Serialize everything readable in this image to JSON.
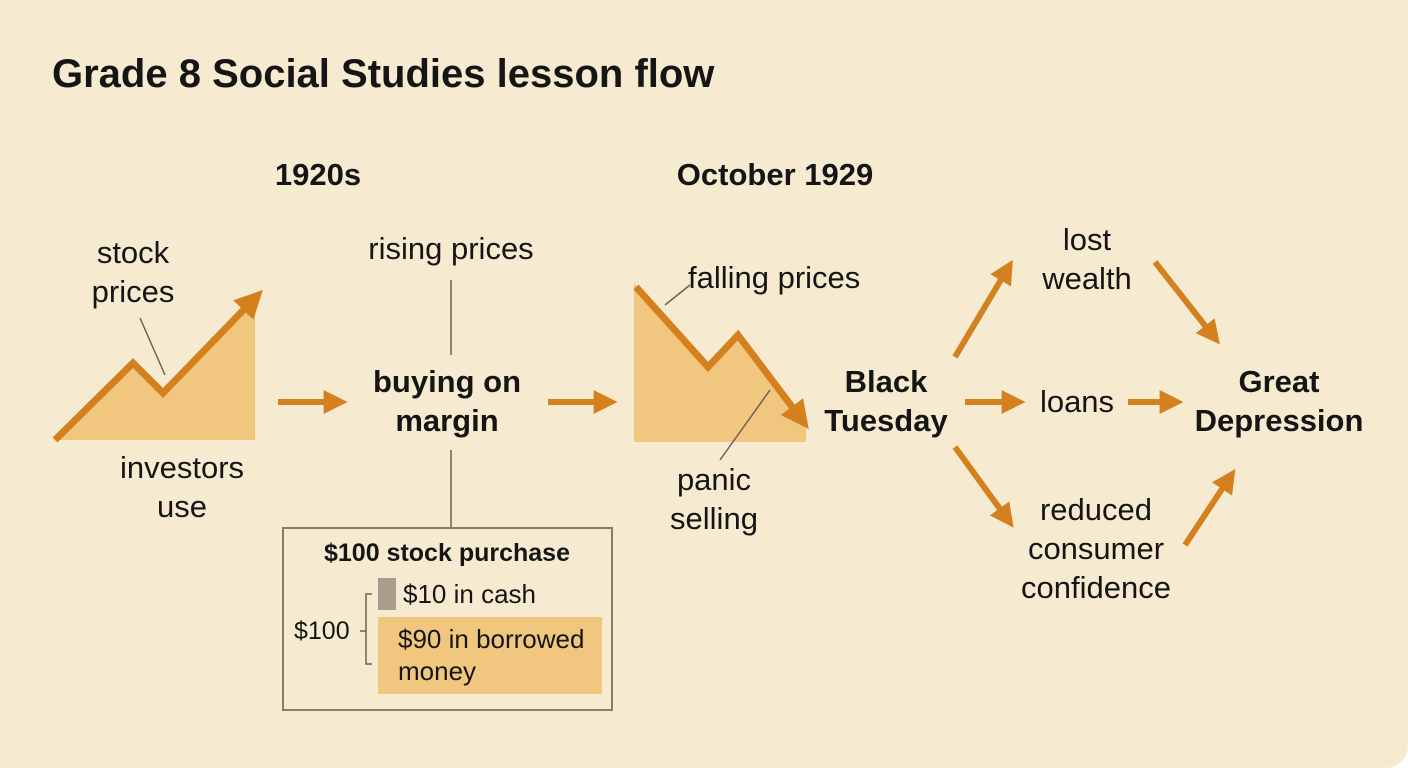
{
  "header": {
    "title": "Grade 8 Social Studies lesson flow"
  },
  "periods": [
    "1920s",
    "October 1929"
  ],
  "annotations": {
    "stock_prices": "stock prices",
    "investors_use": "investors use",
    "rising_prices": "rising prices",
    "falling_prices": "falling prices",
    "panic_selling": "panic selling"
  },
  "nodes": {
    "buying_on_margin": "buying on margin",
    "black_tuesday": "Black Tuesday",
    "great_depression": "Great Depression"
  },
  "effects": [
    "lost wealth",
    "loans",
    "reduced consumer confidence"
  ],
  "example": {
    "title": "$100 stock purchase",
    "total": "$100",
    "parts": [
      "$10 in cash",
      "$90 in borrowed money"
    ]
  }
}
